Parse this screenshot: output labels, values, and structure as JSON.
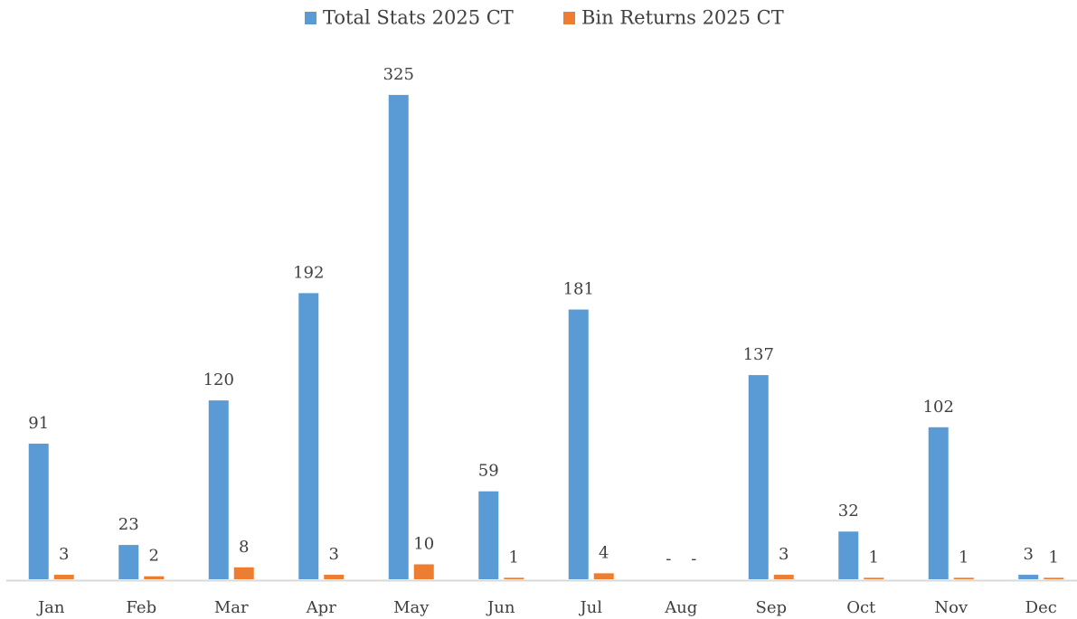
{
  "chart_data": {
    "type": "bar",
    "categories": [
      "Jan",
      "Feb",
      "Mar",
      "Apr",
      "May",
      "Jun",
      "Jul",
      "Aug",
      "Sep",
      "Oct",
      "Nov",
      "Dec"
    ],
    "series": [
      {
        "name": "Total Stats 2025 CT",
        "color": "#5b9bd5",
        "values": [
          91,
          23,
          120,
          192,
          325,
          59,
          181,
          0,
          137,
          32,
          102,
          3
        ],
        "value_labels": [
          "91",
          "23",
          "120",
          "192",
          "325",
          "59",
          "181",
          "-",
          "137",
          "32",
          "102",
          "3"
        ]
      },
      {
        "name": "Bin Returns 2025 CT",
        "color": "#ed7d31",
        "values": [
          3,
          2,
          8,
          3,
          10,
          1,
          4,
          0,
          3,
          1,
          1,
          1
        ],
        "value_labels": [
          "3",
          "2",
          "8",
          "3",
          "10",
          "1",
          "4",
          "-",
          "3",
          "1",
          "1",
          "1"
        ]
      }
    ],
    "ylim": [
      0,
      350
    ],
    "legend": "top"
  }
}
